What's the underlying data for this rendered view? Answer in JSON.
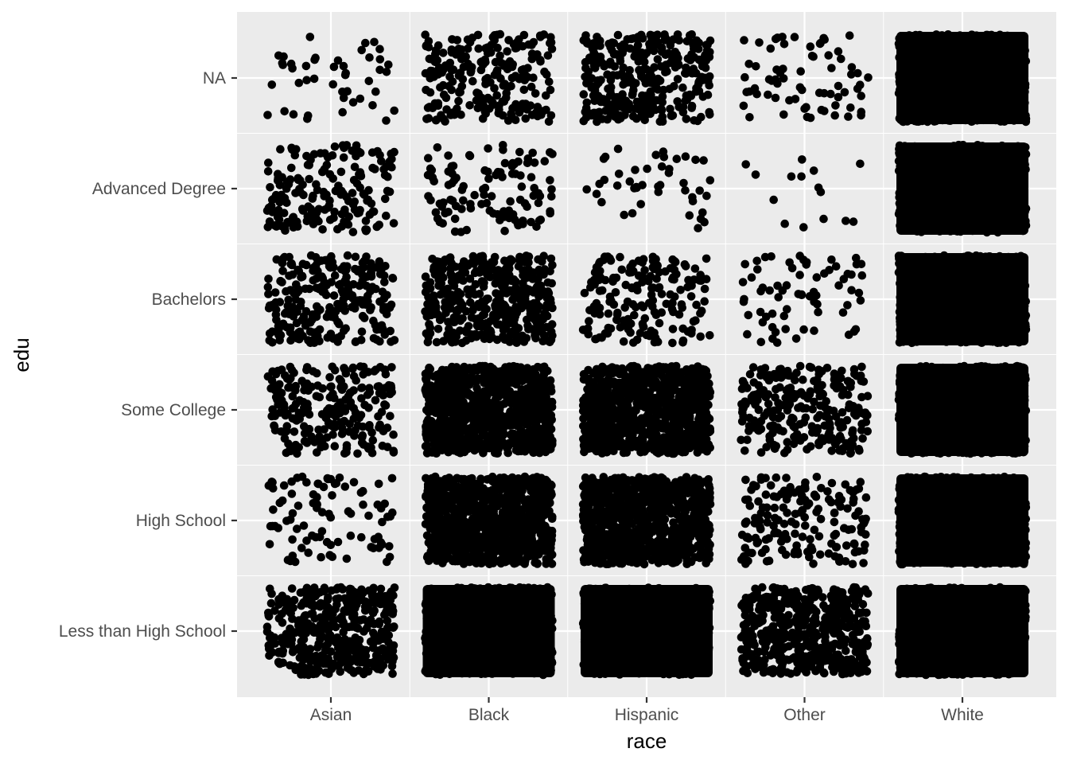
{
  "chart_data": {
    "type": "scatter",
    "jitter": true,
    "title": "",
    "xlabel": "race",
    "ylabel": "edu",
    "x_categories": [
      "Asian",
      "Black",
      "Hispanic",
      "Other",
      "White"
    ],
    "y_categories": [
      "Less than High School",
      "High School",
      "Some College",
      "Bachelors",
      "Advanced Degree",
      "NA"
    ],
    "approx_point_counts": {
      "Asian": {
        "Less than High School": 420,
        "High School": 90,
        "Some College": 230,
        "Bachelors": 260,
        "Advanced Degree": 180,
        "NA": 45
      },
      "Black": {
        "Less than High School": 2600,
        "High School": 1400,
        "Some College": 1100,
        "Bachelors": 420,
        "Advanced Degree": 110,
        "NA": 230
      },
      "Hispanic": {
        "Less than High School": 3200,
        "High School": 1100,
        "Some College": 900,
        "Bachelors": 180,
        "Advanced Degree": 45,
        "NA": 340
      },
      "Other": {
        "Less than High School": 520,
        "High School": 170,
        "Some College": 260,
        "Bachelors": 70,
        "Advanced Degree": 15,
        "NA": 70
      },
      "White": {
        "Less than High School": 5000,
        "High School": 5000,
        "Some College": 5000,
        "Bachelors": 4000,
        "Advanced Degree": 3000,
        "NA": 1500
      }
    },
    "grid": true,
    "legend": "none",
    "colors": {
      "panel": "#ebebeb",
      "grid": "#ffffff",
      "point": "#000000",
      "tick_text": "#4d4d4d",
      "tick": "#333333"
    }
  }
}
